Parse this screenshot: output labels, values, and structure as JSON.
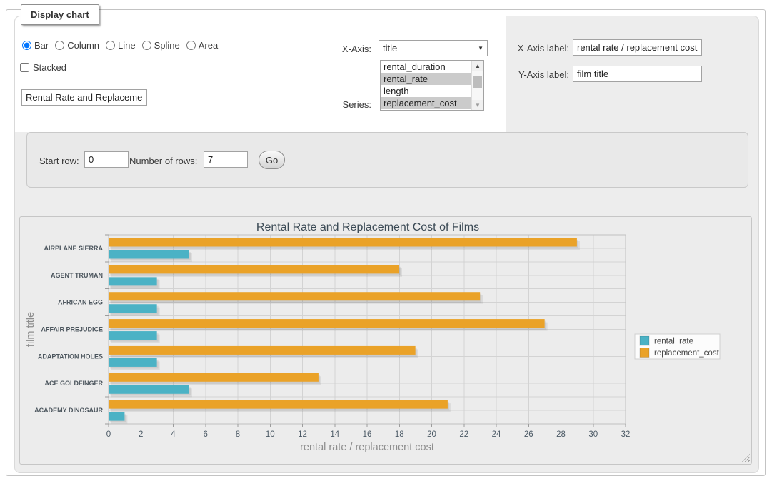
{
  "window": {
    "legend": "Display chart"
  },
  "controls": {
    "chart_type": {
      "options": [
        "Bar",
        "Column",
        "Line",
        "Spline",
        "Area"
      ],
      "selected": "Bar"
    },
    "stacked": {
      "label": "Stacked",
      "checked": false
    },
    "chart_title_input": {
      "value": "Rental Rate and Replacement Cost of Films"
    },
    "x_axis": {
      "label": "X-Axis:",
      "value": "title"
    },
    "series": {
      "label": "Series:",
      "options": [
        {
          "label": "rental_duration",
          "selected": false
        },
        {
          "label": "rental_rate",
          "selected": true
        },
        {
          "label": "length",
          "selected": false
        },
        {
          "label": "replacement_cost",
          "selected": true
        }
      ]
    },
    "x_axis_label": {
      "label": "X-Axis label:",
      "value": "rental rate / replacement cost"
    },
    "y_axis_label": {
      "label": "Y-Axis label:",
      "value": "film title"
    },
    "start_row": {
      "label": "Start row:",
      "value": "0"
    },
    "num_rows": {
      "label": "Number of rows:",
      "value": "7"
    },
    "go_button": "Go"
  },
  "icons": {
    "dropdown_arrow": "▼",
    "scroll_up": "▲",
    "scroll_down": "▼"
  },
  "colors": {
    "series_rental_rate": "#4bb2c5",
    "series_replacement_cost": "#eaa228",
    "selection_highlight": "#cbcbcb",
    "chart_title_text": "#3b4a55",
    "tick_text": "#4c5a66",
    "category_text": "#4c565e",
    "axis_title_text": "#8d8d8d",
    "gridline": "#d3d3d3",
    "plot_border": "#c0c0c0",
    "tick_mark": "#9c9c9c",
    "legend_text": "#444444"
  },
  "chart_data": {
    "type": "bar",
    "orientation": "horizontal",
    "title": "Rental Rate and Replacement Cost of Films",
    "categories": [
      "AIRPLANE SIERRA",
      "AGENT TRUMAN",
      "AFRICAN EGG",
      "AFFAIR PREJUDICE",
      "ADAPTATION HOLES",
      "ACE GOLDFINGER",
      "ACADEMY DINOSAUR"
    ],
    "series": [
      {
        "name": "rental_rate",
        "color": "#4bb2c5",
        "values": [
          4.99,
          2.99,
          2.99,
          2.99,
          2.99,
          4.99,
          0.99
        ]
      },
      {
        "name": "replacement_cost",
        "color": "#eaa228",
        "values": [
          28.99,
          17.99,
          22.99,
          26.99,
          18.99,
          12.99,
          20.99
        ]
      }
    ],
    "xlabel": "rental rate / replacement cost",
    "ylabel": "film title",
    "xlim": [
      0,
      32
    ],
    "xtick_step": 2,
    "grid": true,
    "legend_position": "right"
  }
}
